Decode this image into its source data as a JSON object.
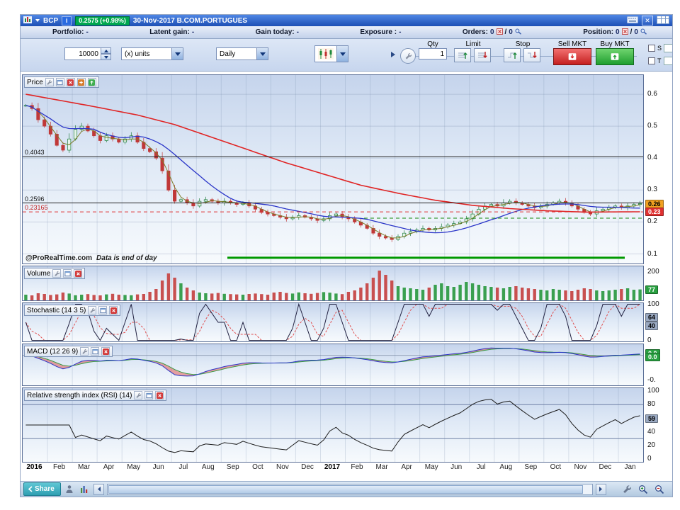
{
  "titlebar": {
    "symbol": "BCP",
    "info": "i",
    "price_badge": "0.2575 (+0.98%)",
    "title": "30-Nov-2017 B.COM.PORTUGUES",
    "close_glyph": "✕"
  },
  "statsbar": {
    "portfolio_label": "Portfolio:",
    "portfolio_value": "-",
    "latent_label": "Latent gain:",
    "latent_value": "-",
    "gain_label": "Gain today:",
    "gain_value": "-",
    "exposure_label": "Exposure :",
    "exposure_value": "-",
    "orders_label": "Orders:",
    "orders_value1": "0",
    "orders_sep": "/",
    "orders_value2": "0",
    "position_label": "Position:",
    "position_value1": "0",
    "position_sep": "/",
    "position_value2": "0"
  },
  "toolbar": {
    "quantity_value": "10000",
    "units_value": "(x) units",
    "timeframe_value": "Daily",
    "qty_label": "Qty",
    "qty_value": "1",
    "limit_label": "Limit",
    "stop_label": "Stop",
    "sell_mkt_label": "Sell MKT",
    "buy_mkt_label": "Buy MKT",
    "s_label": "S",
    "t_label": "T"
  },
  "panels": {
    "price": {
      "label": "Price"
    },
    "volume": {
      "label": "Volume"
    },
    "stoch": {
      "label": "Stochastic (14 3 5)"
    },
    "macd": {
      "label": "MACD (12 26 9)"
    },
    "rsi": {
      "label": "Relative strength index (RSI) (14)"
    }
  },
  "watermark": {
    "brand": "@ProRealTime.com",
    "note": "Data is end of day"
  },
  "bottombar": {
    "share_label": "Share"
  },
  "axes": {
    "price": {
      "ticks": [
        {
          "text": "0.6",
          "value": 0.6
        },
        {
          "text": "0.5",
          "value": 0.5
        },
        {
          "text": "0.4",
          "value": 0.4
        },
        {
          "text": "0.3",
          "value": 0.3
        },
        {
          "text": "0.2",
          "value": 0.2
        },
        {
          "text": "0.1",
          "value": 0.1
        }
      ],
      "badges": [
        {
          "text": "0.26",
          "value": 0.2575,
          "bg": "#f0a020",
          "fg": "#000"
        },
        {
          "text": "0.23",
          "value": 0.2316,
          "bg": "#e03030",
          "fg": "#fff"
        }
      ]
    },
    "volume": {
      "ticks": [
        {
          "text": "200",
          "value": 200
        }
      ],
      "badges": [
        {
          "text": "77",
          "value": 77,
          "bg": "#28a040",
          "fg": "#fff"
        }
      ]
    },
    "stoch": {
      "ticks": [
        {
          "text": "100",
          "value": 100
        },
        {
          "text": "0",
          "value": 0
        }
      ],
      "badges": [
        {
          "text": "64",
          "value": 64,
          "bg": "#9aa9c2",
          "fg": "#000"
        },
        {
          "text": "40",
          "value": 40,
          "bg": "#9aa9c2",
          "fg": "#000"
        }
      ]
    },
    "macd": {
      "ticks": [
        {
          "text": "0.0",
          "value": 0
        },
        {
          "text": "-0.",
          "value": -0.08
        }
      ],
      "badges": [
        {
          "text": "0.0",
          "value": 0.006,
          "bg": "#28a040",
          "fg": "#fff"
        },
        {
          "text": "0.0",
          "value": -0.006,
          "bg": "#28a040",
          "fg": "#fff"
        }
      ]
    },
    "rsi": {
      "ticks": [
        {
          "text": "100",
          "value": 100
        },
        {
          "text": "80",
          "value": 80
        },
        {
          "text": "40",
          "value": 40
        },
        {
          "text": "20",
          "value": 20
        },
        {
          "text": "0",
          "value": 0
        }
      ],
      "badges": [
        {
          "text": "59",
          "value": 59,
          "bg": "#9aa9c2",
          "fg": "#000"
        }
      ]
    }
  },
  "chart_data": {
    "type": "candlestick",
    "title": "BCP B.COM.PORTUGUES daily with Volume, Stochastic(14 3 5), MACD(12 26 9), RSI(14)",
    "x_labels": [
      "2016",
      "Feb",
      "Mar",
      "Apr",
      "May",
      "Jun",
      "Jul",
      "Aug",
      "Sep",
      "Oct",
      "Nov",
      "Dec",
      "2017",
      "Feb",
      "Mar",
      "Apr",
      "May",
      "Jun",
      "Jul",
      "Aug",
      "Sep",
      "Oct",
      "Nov",
      "Dec",
      "Jan"
    ],
    "price_ylim": [
      0.07,
      0.66
    ],
    "volume_ylim": [
      0,
      240
    ],
    "macd_ylim": [
      -0.095,
      0.035
    ],
    "close": [
      0.565,
      0.555,
      0.52,
      0.5,
      0.475,
      0.44,
      0.425,
      0.46,
      0.49,
      0.5,
      0.485,
      0.47,
      0.455,
      0.47,
      0.46,
      0.45,
      0.46,
      0.47,
      0.45,
      0.43,
      0.42,
      0.4,
      0.36,
      0.3,
      0.265,
      0.27,
      0.26,
      0.25,
      0.265,
      0.27,
      0.265,
      0.26,
      0.265,
      0.26,
      0.255,
      0.26,
      0.25,
      0.24,
      0.23,
      0.225,
      0.22,
      0.215,
      0.21,
      0.215,
      0.22,
      0.215,
      0.21,
      0.205,
      0.21,
      0.22,
      0.225,
      0.215,
      0.21,
      0.2,
      0.19,
      0.18,
      0.165,
      0.155,
      0.15,
      0.145,
      0.155,
      0.165,
      0.17,
      0.175,
      0.18,
      0.175,
      0.18,
      0.185,
      0.19,
      0.195,
      0.2,
      0.21,
      0.225,
      0.24,
      0.25,
      0.255,
      0.25,
      0.26,
      0.265,
      0.26,
      0.255,
      0.25,
      0.245,
      0.25,
      0.255,
      0.26,
      0.265,
      0.26,
      0.25,
      0.24,
      0.23,
      0.225,
      0.235,
      0.24,
      0.245,
      0.25,
      0.245,
      0.25,
      0.255,
      0.2575
    ],
    "volume": [
      40,
      35,
      50,
      45,
      38,
      42,
      55,
      48,
      36,
      40,
      44,
      38,
      35,
      42,
      46,
      40,
      38,
      36,
      42,
      45,
      60,
      80,
      140,
      190,
      160,
      120,
      90,
      70,
      55,
      50,
      48,
      52,
      46,
      44,
      42,
      40,
      45,
      48,
      44,
      40,
      55,
      60,
      52,
      48,
      56,
      50,
      46,
      52,
      58,
      54,
      48,
      44,
      60,
      70,
      90,
      120,
      160,
      210,
      180,
      140,
      100,
      90,
      85,
      80,
      75,
      90,
      110,
      120,
      100,
      95,
      110,
      130,
      120,
      110,
      100,
      95,
      90,
      85,
      95,
      100,
      90,
      85,
      80,
      75,
      70,
      80,
      75,
      70,
      65,
      75,
      85,
      80,
      70,
      65,
      70,
      75,
      80,
      85,
      75,
      77
    ],
    "ma_long_anchors": [
      [
        0,
        0.6
      ],
      [
        10,
        0.565
      ],
      [
        18,
        0.535
      ],
      [
        24,
        0.505
      ],
      [
        30,
        0.465
      ],
      [
        36,
        0.425
      ],
      [
        42,
        0.385
      ],
      [
        48,
        0.35
      ],
      [
        54,
        0.315
      ],
      [
        60,
        0.29
      ],
      [
        66,
        0.268
      ],
      [
        72,
        0.252
      ],
      [
        78,
        0.242
      ],
      [
        84,
        0.235
      ],
      [
        90,
        0.231
      ],
      [
        99,
        0.232
      ]
    ],
    "levels": [
      {
        "value": 0.4043,
        "label": "0.4043",
        "style": "solid",
        "color": "#222222",
        "from": 0,
        "to": 1,
        "width": 1
      },
      {
        "value": 0.2596,
        "label": "0.2596",
        "style": "solid",
        "color": "#222222",
        "from": 0,
        "to": 1,
        "width": 1
      },
      {
        "value": 0.23165,
        "label": "0.23165",
        "style": "dashed",
        "color": "#e03030",
        "from": 0,
        "to": 1,
        "width": 1
      },
      {
        "value": 0.212,
        "label": "",
        "style": "dashed",
        "color": "#3f9f3f",
        "from": 0.55,
        "to": 1,
        "width": 1.2
      },
      {
        "value": 0.088,
        "label": "",
        "style": "solid",
        "color": "#009900",
        "from": 0.33,
        "to": 0.97,
        "width": 3
      }
    ],
    "rsi_lines": [
      80,
      30
    ]
  }
}
